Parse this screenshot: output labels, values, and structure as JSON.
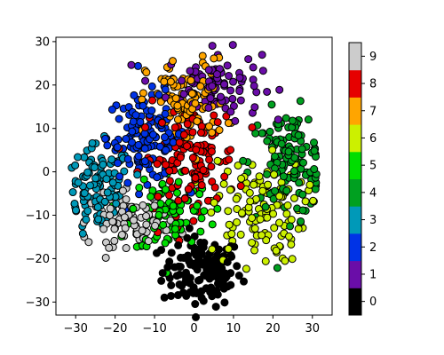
{
  "chart_data": {
    "type": "scatter",
    "title": "",
    "xlabel": "",
    "ylabel": "",
    "xlim": [
      -35,
      35
    ],
    "ylim": [
      -33,
      31
    ],
    "xticks": [
      "−30",
      "−20",
      "−10",
      "0",
      "10",
      "20",
      "30"
    ],
    "xtick_values": [
      -30,
      -20,
      -10,
      0,
      10,
      20,
      30
    ],
    "yticks": [
      "−30",
      "−20",
      "−10",
      "0",
      "10",
      "20",
      "30"
    ],
    "ytick_values": [
      -30,
      -20,
      -10,
      0,
      10,
      20,
      30
    ],
    "grid": false,
    "marker_edge_color": "#000000",
    "colorbar": {
      "labels": [
        "0",
        "1",
        "2",
        "3",
        "4",
        "5",
        "6",
        "7",
        "8",
        "9"
      ],
      "colors": [
        "#000000",
        "#6a0da8",
        "#0033e6",
        "#0099b8",
        "#00a020",
        "#00dd00",
        "#ccf000",
        "#ffa500",
        "#e60000",
        "#cccccc"
      ]
    },
    "series": [
      {
        "class": "0",
        "color": "#000000",
        "center": [
          2,
          -23
        ],
        "spread": [
          5,
          4
        ],
        "count": 140
      },
      {
        "class": "1",
        "color": "#6a0da8",
        "center": [
          5,
          20
        ],
        "spread": [
          6,
          4
        ],
        "count": 110
      },
      {
        "class": "2",
        "color": "#0033e6",
        "center": [
          -12,
          8
        ],
        "spread": [
          5,
          5
        ],
        "count": 130
      },
      {
        "class": "3",
        "color": "#0099b8",
        "center": [
          -24,
          -4
        ],
        "spread": [
          4,
          5
        ],
        "count": 110
      },
      {
        "class": "4",
        "color": "#00a020",
        "center": [
          24,
          2
        ],
        "spread": [
          5,
          6
        ],
        "count": 130
      },
      {
        "class": "5",
        "color": "#00dd00",
        "center": [
          -6,
          -9
        ],
        "spread": [
          5,
          5
        ],
        "count": 90
      },
      {
        "class": "6",
        "color": "#ccf000",
        "center": [
          16,
          -9
        ],
        "spread": [
          6,
          6
        ],
        "count": 120
      },
      {
        "class": "7",
        "color": "#ffa500",
        "center": [
          -2,
          16
        ],
        "spread": [
          5,
          5
        ],
        "count": 100
      },
      {
        "class": "8",
        "color": "#e60000",
        "center": [
          -1,
          3
        ],
        "spread": [
          6,
          6
        ],
        "count": 130
      },
      {
        "class": "9",
        "color": "#cccccc",
        "center": [
          -16,
          -11
        ],
        "spread": [
          5,
          3
        ],
        "count": 90
      }
    ]
  }
}
